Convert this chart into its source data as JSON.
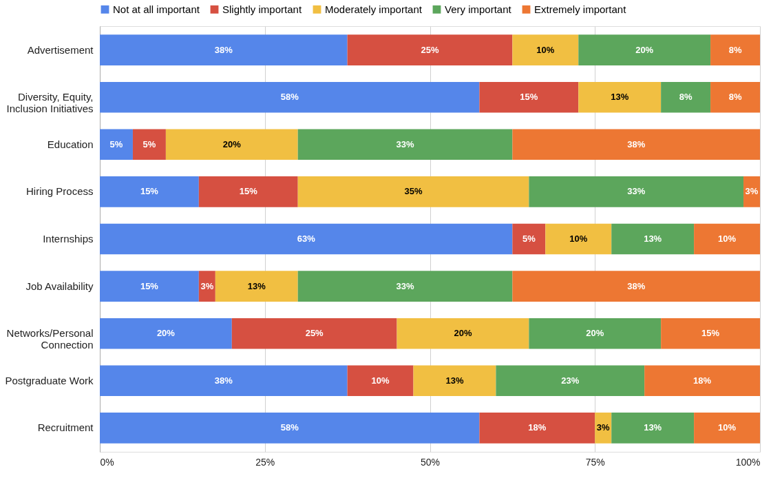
{
  "chart_data": {
    "type": "bar",
    "orientation": "horizontal",
    "stacked": true,
    "categories": [
      "Advertisement",
      "Diversity, Equity, Inclusion Initiatives",
      "Education",
      "Hiring Process",
      "Internships",
      "Job Availability",
      "Networks/Personal Connection",
      "Postgraduate Work",
      "Recruitment"
    ],
    "series": [
      {
        "name": "Not at all important",
        "color": "#5586ea",
        "values": [
          37.5,
          57.5,
          5,
          15,
          62.5,
          15,
          20,
          37.5,
          57.5
        ],
        "value_labels": [
          "38%",
          "58%",
          "5%",
          "15%",
          "63%",
          "15%",
          "20%",
          "38%",
          "58%"
        ]
      },
      {
        "name": "Slightly important",
        "color": "#d65041",
        "values": [
          25,
          15,
          5,
          15,
          5,
          2.5,
          25,
          10,
          17.5
        ],
        "value_labels": [
          "25%",
          "15%",
          "5%",
          "15%",
          "5%",
          "3%",
          "25%",
          "10%",
          "18%"
        ]
      },
      {
        "name": "Moderately important",
        "color": "#f1bf42",
        "values": [
          10,
          12.5,
          20,
          35,
          10,
          12.5,
          20,
          12.5,
          2.5
        ],
        "value_labels": [
          "10%",
          "13%",
          "20%",
          "35%",
          "10%",
          "13%",
          "20%",
          "13%",
          "3%"
        ]
      },
      {
        "name": "Very important",
        "color": "#5ca65c",
        "values": [
          20,
          7.5,
          32.5,
          32.5,
          12.5,
          32.5,
          20,
          22.5,
          12.5
        ],
        "value_labels": [
          "20%",
          "8%",
          "33%",
          "33%",
          "13%",
          "33%",
          "20%",
          "23%",
          "13%"
        ]
      },
      {
        "name": "Extremely important",
        "color": "#ed7733",
        "values": [
          7.5,
          7.5,
          37.5,
          2.5,
          10,
          37.5,
          15,
          17.5,
          10
        ],
        "value_labels": [
          "8%",
          "8%",
          "38%",
          "3%",
          "10%",
          "38%",
          "15%",
          "18%",
          "10%"
        ]
      }
    ],
    "xlim": [
      0,
      100
    ],
    "xticks": [
      {
        "value": 0,
        "label": "0%"
      },
      {
        "value": 25,
        "label": "25%"
      },
      {
        "value": 50,
        "label": "50%"
      },
      {
        "value": 75,
        "label": "75%"
      },
      {
        "value": 100,
        "label": "100%"
      }
    ],
    "grid": "x",
    "legend": "top"
  }
}
